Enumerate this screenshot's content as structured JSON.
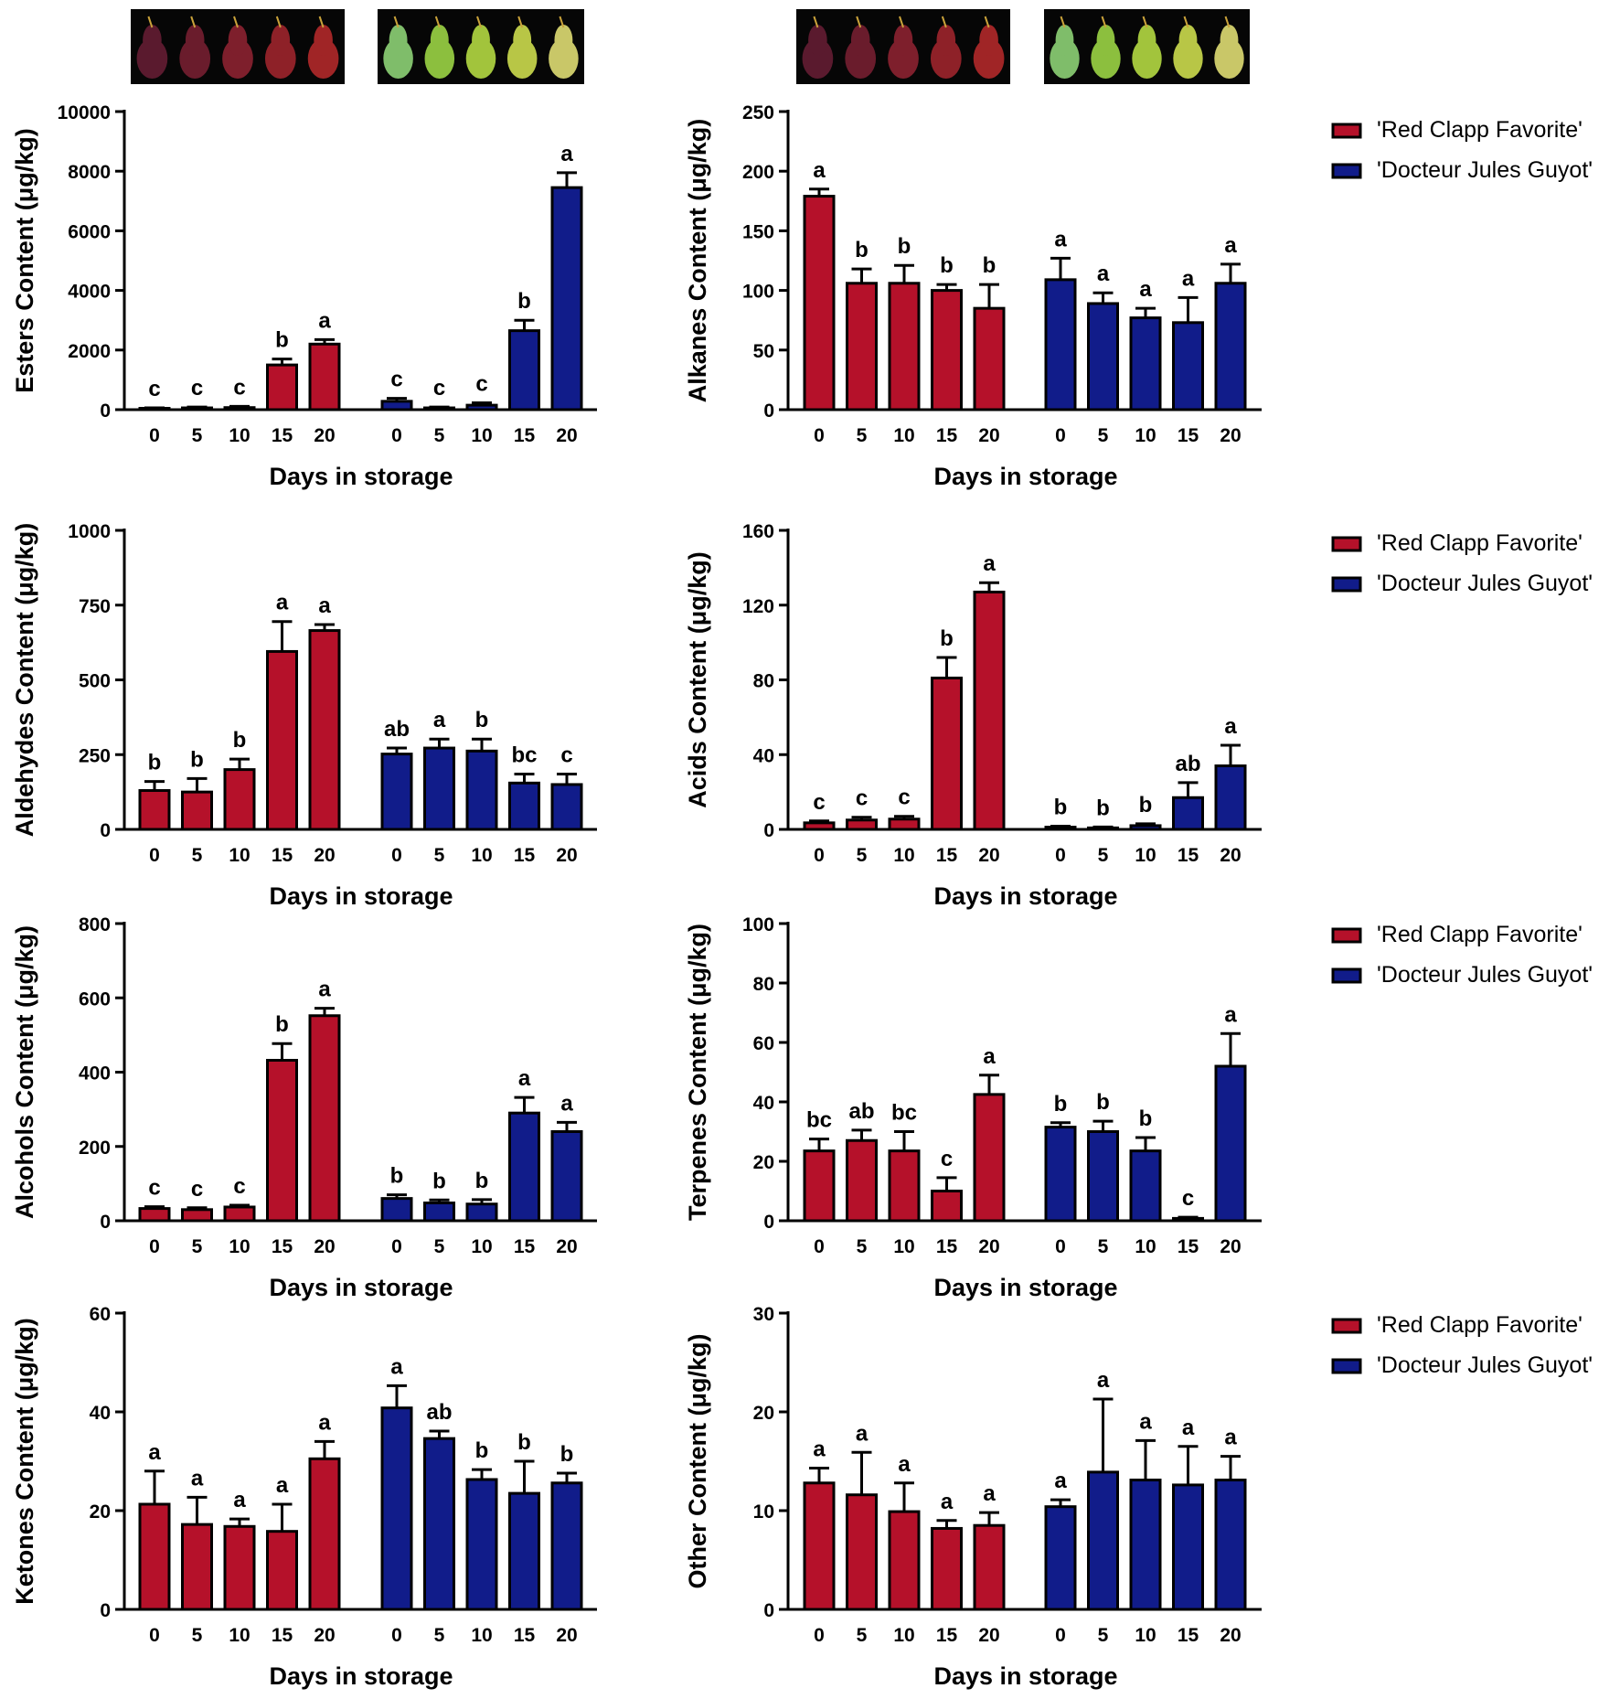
{
  "colors": {
    "red_cultivar": "#b5112a",
    "blue_cultivar": "#111c8a",
    "axis": "#000000"
  },
  "legend": {
    "entries": [
      "'Red Clapp Favorite'",
      "'Docteur Jules Guyot'"
    ]
  },
  "photos": [
    {
      "name": "red-pears-photo",
      "cultivar": "'Red Clapp Favorite'"
    },
    {
      "name": "green-pears-photo",
      "cultivar": "'Docteur Jules Guyot'"
    },
    {
      "name": "red-pears-photo",
      "cultivar": "'Red Clapp Favorite'"
    },
    {
      "name": "green-pears-photo",
      "cultivar": "'Docteur Jules Guyot'"
    }
  ],
  "chart_data": [
    {
      "type": "bar",
      "id": "esters",
      "ylabel": "Esters Content (μg/kg)",
      "xlabel": "Days in storage",
      "ylim": [
        0,
        10000
      ],
      "yticks": [
        "0",
        "2000",
        "4000",
        "6000",
        "8000",
        "10000"
      ],
      "categories": [
        "0",
        "5",
        "10",
        "15",
        "20"
      ],
      "series": [
        {
          "name": "'Red Clapp Favorite'",
          "values": [
            40,
            60,
            70,
            1500,
            2200
          ],
          "errors": [
            20,
            30,
            40,
            200,
            150
          ],
          "letters": [
            "c",
            "c",
            "c",
            "b",
            "a"
          ]
        },
        {
          "name": "'Docteur Jules Guyot'",
          "values": [
            280,
            60,
            150,
            2650,
            7450
          ],
          "errors": [
            100,
            30,
            80,
            350,
            500
          ],
          "letters": [
            "c",
            "c",
            "c",
            "b",
            "a"
          ]
        }
      ]
    },
    {
      "type": "bar",
      "id": "alkanes",
      "ylabel": "Alkanes Content (μg/kg)",
      "xlabel": "Days in storage",
      "ylim": [
        0,
        250
      ],
      "yticks": [
        "0",
        "50",
        "100",
        "150",
        "200",
        "250"
      ],
      "categories": [
        "0",
        "5",
        "10",
        "15",
        "20"
      ],
      "series": [
        {
          "name": "'Red Clapp Favorite'",
          "values": [
            179,
            106,
            106,
            100,
            85
          ],
          "errors": [
            6,
            12,
            15,
            5,
            20
          ],
          "letters": [
            "a",
            "b",
            "b",
            "b",
            "b"
          ]
        },
        {
          "name": "'Docteur Jules Guyot'",
          "values": [
            109,
            89,
            77,
            73,
            106
          ],
          "errors": [
            18,
            9,
            8,
            21,
            16
          ],
          "letters": [
            "a",
            "a",
            "a",
            "a",
            "a"
          ]
        }
      ]
    },
    {
      "type": "bar",
      "id": "aldehydes",
      "ylabel": "Aldehydes Content (μg/kg)",
      "xlabel": "Days in storage",
      "ylim": [
        0,
        1000
      ],
      "yticks": [
        "0",
        "250",
        "500",
        "750",
        "1000"
      ],
      "categories": [
        "0",
        "5",
        "10",
        "15",
        "20"
      ],
      "series": [
        {
          "name": "'Red Clapp Favorite'",
          "values": [
            130,
            125,
            200,
            595,
            665
          ],
          "errors": [
            30,
            45,
            35,
            100,
            20
          ],
          "letters": [
            "b",
            "b",
            "b",
            "a",
            "a"
          ]
        },
        {
          "name": "'Docteur Jules Guyot'",
          "values": [
            252,
            272,
            262,
            155,
            150
          ],
          "errors": [
            20,
            30,
            40,
            30,
            35
          ],
          "letters": [
            "ab",
            "a",
            "b",
            "bc",
            "c"
          ]
        }
      ]
    },
    {
      "type": "bar",
      "id": "acids",
      "ylabel": "Acids Content (μg/kg)",
      "xlabel": "Days in storage",
      "ylim": [
        0,
        160
      ],
      "yticks": [
        "0",
        "40",
        "80",
        "120",
        "160"
      ],
      "categories": [
        "0",
        "5",
        "10",
        "15",
        "20"
      ],
      "series": [
        {
          "name": "'Red Clapp Favorite'",
          "values": [
            3.5,
            5,
            5.5,
            81,
            127
          ],
          "errors": [
            1,
            1.5,
            1.5,
            11,
            5
          ],
          "letters": [
            "c",
            "c",
            "c",
            "b",
            "a"
          ]
        },
        {
          "name": "'Docteur Jules Guyot'",
          "values": [
            1.2,
            0.8,
            2,
            17,
            34
          ],
          "errors": [
            0.5,
            0.5,
            1,
            8,
            11
          ],
          "letters": [
            "b",
            "b",
            "b",
            "ab",
            "a"
          ]
        }
      ]
    },
    {
      "type": "bar",
      "id": "alcohols",
      "ylabel": "Alcohols Content (μg/kg)",
      "xlabel": "Days in storage",
      "ylim": [
        0,
        800
      ],
      "yticks": [
        "0",
        "200",
        "400",
        "600",
        "800"
      ],
      "categories": [
        "0",
        "5",
        "10",
        "15",
        "20"
      ],
      "series": [
        {
          "name": "'Red Clapp Favorite'",
          "values": [
            33,
            30,
            37,
            432,
            552
          ],
          "errors": [
            5,
            5,
            5,
            45,
            20
          ],
          "letters": [
            "c",
            "c",
            "c",
            "b",
            "a"
          ]
        },
        {
          "name": "'Docteur Jules Guyot'",
          "values": [
            60,
            48,
            45,
            290,
            240
          ],
          "errors": [
            10,
            8,
            12,
            42,
            25
          ],
          "letters": [
            "b",
            "b",
            "b",
            "a",
            "a"
          ]
        }
      ]
    },
    {
      "type": "bar",
      "id": "terpenes",
      "ylabel": "Terpenes Content (μg/kg)",
      "xlabel": "Days in storage",
      "ylim": [
        0,
        100
      ],
      "yticks": [
        "0",
        "20",
        "40",
        "60",
        "80",
        "100"
      ],
      "categories": [
        "0",
        "5",
        "10",
        "15",
        "20"
      ],
      "series": [
        {
          "name": "'Red Clapp Favorite'",
          "values": [
            23.5,
            27,
            23.5,
            10,
            42.5
          ],
          "errors": [
            4,
            3.5,
            6.5,
            4.5,
            6.5
          ],
          "letters": [
            "bc",
            "ab",
            "bc",
            "c",
            "a"
          ]
        },
        {
          "name": "'Docteur Jules Guyot'",
          "values": [
            31.5,
            30,
            23.5,
            0.8,
            52
          ],
          "errors": [
            1.5,
            3.5,
            4.5,
            0.4,
            11
          ],
          "letters": [
            "b",
            "b",
            "b",
            "c",
            "a"
          ]
        }
      ]
    },
    {
      "type": "bar",
      "id": "ketones",
      "ylabel": "Ketones Content (μg/kg)",
      "xlabel": "Days in storage",
      "ylim": [
        0,
        60
      ],
      "yticks": [
        "0",
        "20",
        "40",
        "60"
      ],
      "categories": [
        "0",
        "5",
        "10",
        "15",
        "20"
      ],
      "series": [
        {
          "name": "'Red Clapp Favorite'",
          "values": [
            21.3,
            17.2,
            16.8,
            15.8,
            30.5
          ],
          "errors": [
            6.7,
            5.5,
            1.5,
            5.5,
            3.5
          ],
          "letters": [
            "a",
            "a",
            "a",
            "a",
            "a"
          ]
        },
        {
          "name": "'Docteur Jules Guyot'",
          "values": [
            40.8,
            34.6,
            26.3,
            23.5,
            25.6
          ],
          "errors": [
            4.5,
            1.5,
            2,
            6.5,
            2
          ],
          "letters": [
            "a",
            "ab",
            "b",
            "b",
            "b"
          ]
        }
      ]
    },
    {
      "type": "bar",
      "id": "other",
      "ylabel": "Other Content (μg/kg)",
      "xlabel": "Days in storage",
      "ylim": [
        0,
        30
      ],
      "yticks": [
        "0",
        "10",
        "20",
        "30"
      ],
      "categories": [
        "0",
        "5",
        "10",
        "15",
        "20"
      ],
      "series": [
        {
          "name": "'Red Clapp Favorite'",
          "values": [
            12.8,
            11.6,
            9.9,
            8.2,
            8.5
          ],
          "errors": [
            1.5,
            4.3,
            2.9,
            0.8,
            1.3
          ],
          "letters": [
            "a",
            "a",
            "a",
            "a",
            "a"
          ]
        },
        {
          "name": "'Docteur Jules Guyot'",
          "values": [
            10.4,
            13.9,
            13.1,
            12.6,
            13.1
          ],
          "errors": [
            0.7,
            7.4,
            4,
            3.9,
            2.4
          ],
          "letters": [
            "a",
            "a",
            "a",
            "a",
            "a"
          ]
        }
      ]
    }
  ]
}
